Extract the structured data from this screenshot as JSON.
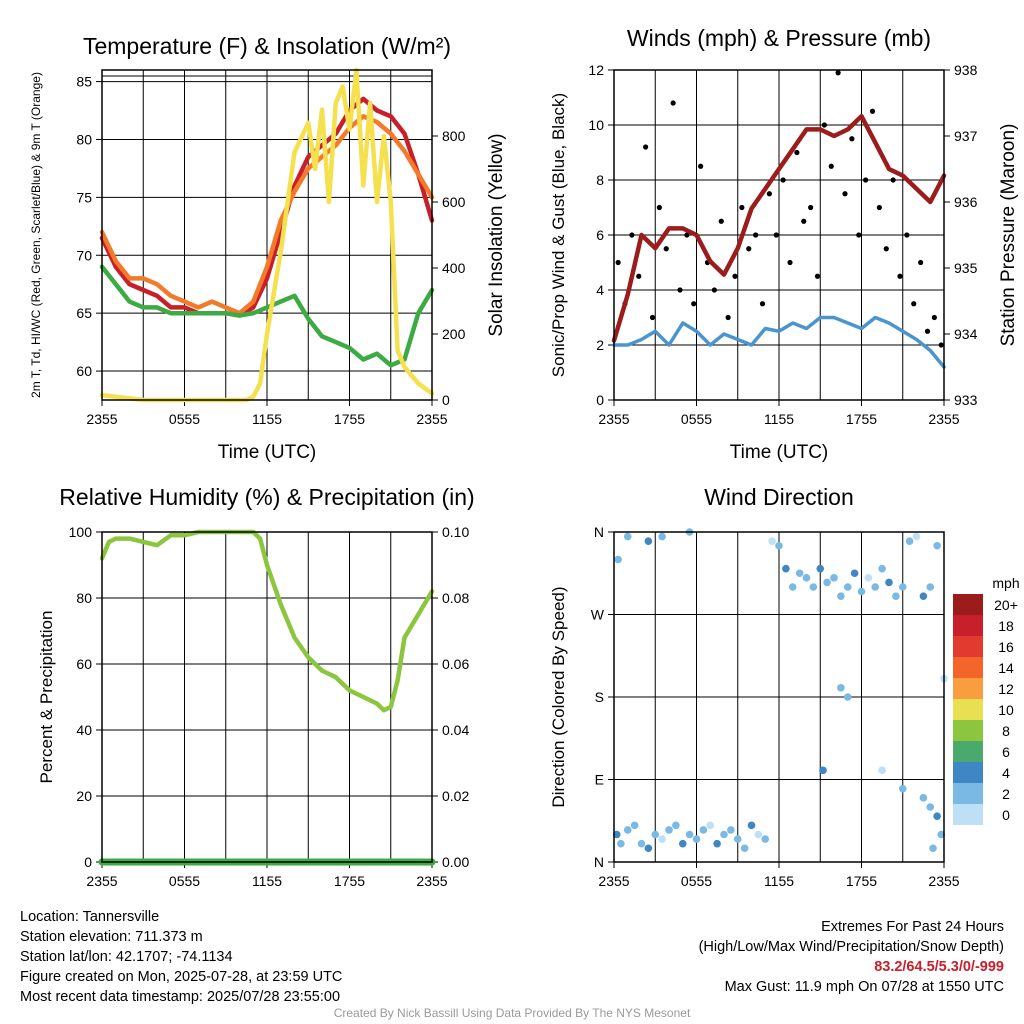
{
  "chart_data": [
    {
      "type": "line",
      "title": "Temperature (F) & Insolation (W/m²)",
      "xlabel": "Time (UTC)",
      "ylabel_left": "2m T, Td, HI/WC (Red, Green, Scarlet/Blue) & 9m T (Orange)",
      "ylabel_right": "Solar Insolation (Yellow)",
      "xticks": [
        "2355",
        "0555",
        "1155",
        "1755",
        "2355"
      ],
      "xlim": [
        0,
        24
      ],
      "ylim_left": [
        57.5,
        86
      ],
      "yticks_left": [
        60,
        65,
        70,
        75,
        80,
        85
      ],
      "ylim_right": [
        0,
        1000
      ],
      "yticks_right": [
        0,
        200,
        400,
        600,
        800
      ],
      "grid": true,
      "series": [
        {
          "name": "2m T",
          "color": "#c8202a",
          "axis": "left",
          "x": [
            0,
            1,
            2,
            3,
            4,
            5,
            6,
            7,
            8,
            9,
            10,
            11,
            12,
            13,
            14,
            15,
            16,
            17,
            18,
            19,
            20,
            21,
            22,
            23,
            24
          ],
          "y": [
            71.5,
            69.0,
            67.5,
            67.0,
            66.5,
            65.5,
            65.5,
            65.0,
            65.0,
            65.0,
            64.8,
            65.5,
            68.0,
            72.0,
            76.0,
            78.5,
            79.5,
            80.5,
            82.5,
            83.5,
            82.5,
            82.0,
            80.5,
            77.0,
            73.0
          ]
        },
        {
          "name": "9m T",
          "color": "#f47a2a",
          "axis": "left",
          "x": [
            0,
            1,
            2,
            3,
            4,
            5,
            6,
            7,
            8,
            9,
            10,
            11,
            12,
            13,
            14,
            15,
            16,
            17,
            18,
            19,
            20,
            21,
            22,
            23,
            24
          ],
          "y": [
            72.0,
            69.5,
            68.0,
            68.0,
            67.5,
            66.5,
            66.0,
            65.5,
            66.0,
            65.5,
            65.0,
            66.0,
            69.0,
            73.0,
            75.5,
            77.5,
            78.5,
            79.5,
            81.0,
            82.0,
            81.5,
            80.5,
            79.0,
            77.0,
            75.0
          ]
        },
        {
          "name": "Td",
          "color": "#3cab44",
          "axis": "left",
          "x": [
            0,
            1,
            2,
            3,
            4,
            5,
            6,
            7,
            8,
            9,
            10,
            11,
            12,
            13,
            14,
            15,
            16,
            17,
            18,
            19,
            20,
            21,
            22,
            23,
            24
          ],
          "y": [
            69.0,
            67.5,
            66.0,
            65.5,
            65.5,
            65.0,
            65.0,
            65.0,
            65.0,
            65.0,
            64.8,
            65.0,
            65.5,
            66.0,
            66.5,
            64.5,
            63.0,
            62.5,
            62.0,
            61.0,
            61.5,
            60.5,
            61.0,
            65.0,
            67.0
          ]
        },
        {
          "name": "Solar Insolation",
          "color": "#f5e04e",
          "axis": "right",
          "x": [
            0,
            3,
            6,
            9,
            10.5,
            11,
            11.5,
            12,
            13,
            14,
            15,
            15.5,
            16,
            16.5,
            17,
            17.5,
            18,
            18.5,
            19,
            19.5,
            20,
            20.5,
            21,
            21.5,
            22,
            23,
            24
          ],
          "y": [
            15,
            0,
            0,
            0,
            0,
            10,
            50,
            200,
            450,
            750,
            840,
            700,
            880,
            600,
            900,
            950,
            820,
            1000,
            650,
            900,
            600,
            800,
            600,
            150,
            100,
            50,
            20
          ]
        }
      ]
    },
    {
      "type": "line",
      "title": "Winds (mph) & Pressure (mb)",
      "xlabel": "Time (UTC)",
      "ylabel_left": "Sonic/Prop Wind & Gust (Blue, Black)",
      "ylabel_right": "Station Pressure (Maroon)",
      "xticks": [
        "2355",
        "0555",
        "1155",
        "1755",
        "2355"
      ],
      "xlim": [
        0,
        24
      ],
      "ylim_left": [
        0,
        12
      ],
      "yticks_left": [
        0,
        2,
        4,
        6,
        8,
        10,
        12
      ],
      "ylim_right": [
        933,
        938
      ],
      "yticks_right": [
        933,
        934,
        935,
        936,
        937,
        938
      ],
      "grid": true,
      "series": [
        {
          "name": "Wind",
          "color": "#4a94cf",
          "axis": "left",
          "x": [
            0,
            1,
            2,
            3,
            4,
            5,
            6,
            7,
            8,
            9,
            10,
            11,
            12,
            13,
            14,
            15,
            16,
            17,
            18,
            19,
            20,
            21,
            22,
            23,
            24
          ],
          "y": [
            2.0,
            2.0,
            2.2,
            2.5,
            2.0,
            2.8,
            2.5,
            2.0,
            2.4,
            2.2,
            2.0,
            2.6,
            2.5,
            2.8,
            2.6,
            3.0,
            3.0,
            2.8,
            2.6,
            3.0,
            2.8,
            2.5,
            2.2,
            1.8,
            1.2
          ]
        },
        {
          "name": "Gust",
          "color": "#000000",
          "axis": "left",
          "x": [
            0.3,
            0.8,
            1.3,
            1.8,
            2.3,
            2.8,
            3.3,
            3.8,
            4.3,
            4.8,
            5.3,
            5.8,
            6.3,
            6.8,
            7.3,
            7.8,
            8.3,
            8.8,
            9.3,
            9.8,
            10.3,
            10.8,
            11.3,
            11.8,
            12.3,
            12.8,
            13.3,
            13.8,
            14.3,
            14.8,
            15.3,
            15.8,
            16.3,
            16.8,
            17.3,
            17.8,
            18.3,
            18.8,
            19.3,
            19.8,
            20.3,
            20.8,
            21.3,
            21.8,
            22.3,
            22.8,
            23.3,
            23.8
          ],
          "y": [
            5.0,
            3.5,
            6.0,
            4.5,
            9.2,
            3.0,
            7.0,
            5.5,
            10.8,
            4.0,
            6.0,
            3.5,
            8.5,
            5.0,
            4.0,
            6.5,
            3.0,
            4.5,
            7.0,
            5.5,
            6.0,
            3.5,
            7.5,
            6.0,
            8.0,
            5.0,
            9.0,
            6.5,
            7.0,
            4.5,
            10.0,
            8.5,
            11.9,
            7.5,
            9.5,
            6.0,
            8.0,
            10.5,
            7.0,
            5.5,
            8.0,
            4.5,
            6.0,
            3.5,
            5.0,
            2.5,
            3.0,
            2.0
          ]
        },
        {
          "name": "Station Pressure",
          "color": "#9c1c1c",
          "axis": "right",
          "x": [
            0,
            1,
            2,
            3,
            4,
            5,
            6,
            7,
            8,
            9,
            10,
            11,
            12,
            13,
            14,
            15,
            16,
            17,
            18,
            19,
            20,
            21,
            22,
            23,
            24
          ],
          "y": [
            933.9,
            934.6,
            935.5,
            935.3,
            935.6,
            935.6,
            935.5,
            935.1,
            934.9,
            935.3,
            935.9,
            936.2,
            936.5,
            936.8,
            937.1,
            937.1,
            937.0,
            937.1,
            937.3,
            936.9,
            936.5,
            936.4,
            936.2,
            936.0,
            936.4
          ]
        }
      ]
    },
    {
      "type": "line",
      "title": "Relative Humidity (%) & Precipitation (in)",
      "xlabel": "",
      "ylabel_left": "Percent & Precipitation",
      "xticks": [
        "2355",
        "0555",
        "1155",
        "1755",
        "2355"
      ],
      "xlim": [
        0,
        24
      ],
      "ylim_left": [
        0,
        100
      ],
      "yticks_left": [
        0,
        20,
        40,
        60,
        80,
        100
      ],
      "ylim_right": [
        0,
        0.1
      ],
      "yticks_right": [
        "0.00",
        "0.02",
        "0.04",
        "0.06",
        "0.08",
        "0.10"
      ],
      "grid": true,
      "series": [
        {
          "name": "Relative Humidity",
          "color": "#8cc63f",
          "axis": "left",
          "x": [
            0,
            0.5,
            1,
            2,
            3,
            4,
            5,
            6,
            7,
            8,
            9,
            10,
            11,
            11.5,
            12,
            13,
            14,
            15,
            16,
            17,
            18,
            19,
            20,
            20.5,
            21,
            21.5,
            22,
            23,
            24
          ],
          "y": [
            92,
            97,
            98,
            98,
            97,
            96,
            99,
            99,
            100,
            100,
            100,
            100,
            100,
            98,
            90,
            78,
            68,
            62,
            58,
            56,
            52,
            50,
            48,
            46,
            47,
            55,
            68,
            75,
            82
          ]
        },
        {
          "name": "Precipitation",
          "color": "#3cab44",
          "axis": "right",
          "x": [
            0,
            24
          ],
          "y": [
            0,
            0
          ]
        }
      ]
    },
    {
      "type": "scatter",
      "title": "Wind Direction",
      "xlabel": "",
      "ylabel_left": "Direction (Colored By Speed)",
      "xticks": [
        "2355",
        "0555",
        "1155",
        "1755",
        "2355"
      ],
      "xlim": [
        0,
        24
      ],
      "yticks_left": [
        "N",
        "E",
        "S",
        "W",
        "N"
      ],
      "ylim_left": [
        0,
        360
      ],
      "grid": true,
      "colorbar": {
        "title": "mph",
        "labels": [
          "20+",
          "18",
          "16",
          "14",
          "12",
          "10",
          "8",
          "6",
          "4",
          "2",
          "0"
        ],
        "colors": [
          "#9c1c1c",
          "#c8202a",
          "#e23a2e",
          "#f4652a",
          "#f99e3e",
          "#e9df52",
          "#8cc63f",
          "#4aa96c",
          "#3e86c4",
          "#79b9e4",
          "#bde0f6"
        ]
      },
      "series": [
        {
          "name": "Direction",
          "color": "#79b9e4",
          "x": [
            0.2,
            0.5,
            1.0,
            1.5,
            2.0,
            2.5,
            3.0,
            3.5,
            4.0,
            4.5,
            5.0,
            5.5,
            6.0,
            6.5,
            7.0,
            7.5,
            8.0,
            8.5,
            9.0,
            9.5,
            10.0,
            10.5,
            11.0,
            0.3,
            1.0,
            2.5,
            3.5,
            5.5,
            11.5,
            12.0,
            12.5,
            13.0,
            13.5,
            14.0,
            14.5,
            15.0,
            15.5,
            16.0,
            16.5,
            17.0,
            17.5,
            18.0,
            18.5,
            19.0,
            19.5,
            20.0,
            20.5,
            21.0,
            21.5,
            22.0,
            22.5,
            23.0,
            23.5,
            16.5,
            17.0,
            15.2,
            19.5,
            21.0,
            22.5,
            23.0,
            23.5,
            23.8,
            23.2,
            24.0
          ],
          "y": [
            30,
            20,
            35,
            40,
            20,
            15,
            30,
            25,
            35,
            40,
            20,
            30,
            25,
            35,
            40,
            20,
            30,
            35,
            25,
            15,
            40,
            30,
            25,
            330,
            355,
            350,
            355,
            360,
            350,
            345,
            320,
            300,
            315,
            310,
            300,
            320,
            305,
            310,
            290,
            300,
            315,
            295,
            310,
            300,
            320,
            305,
            290,
            300,
            350,
            355,
            290,
            300,
            345,
            190,
            180,
            100,
            100,
            80,
            70,
            60,
            50,
            30,
            15,
            200
          ]
        }
      ]
    }
  ],
  "info": {
    "location": "Location: Tannersville",
    "elevation": "Station elevation: 711.373 m",
    "latlon": "Station lat/lon: 42.1707; -74.1134",
    "created": "Figure created on Mon, 2025-07-28, at 23:59 UTC",
    "recent": "Most recent data timestamp: 2025/07/28 23:55:00"
  },
  "extremes": {
    "heading": "Extremes For Past 24 Hours",
    "subheading": "(High/Low/Max Wind/Precipitation/Snow Depth)",
    "values": "83.2/64.5/5.3/0/-999",
    "max_gust": "Max Gust: 11.9 mph On 07/28 at 1550 UTC"
  },
  "credit": "Created By Nick Bassill Using Data Provided By The NYS Mesonet"
}
